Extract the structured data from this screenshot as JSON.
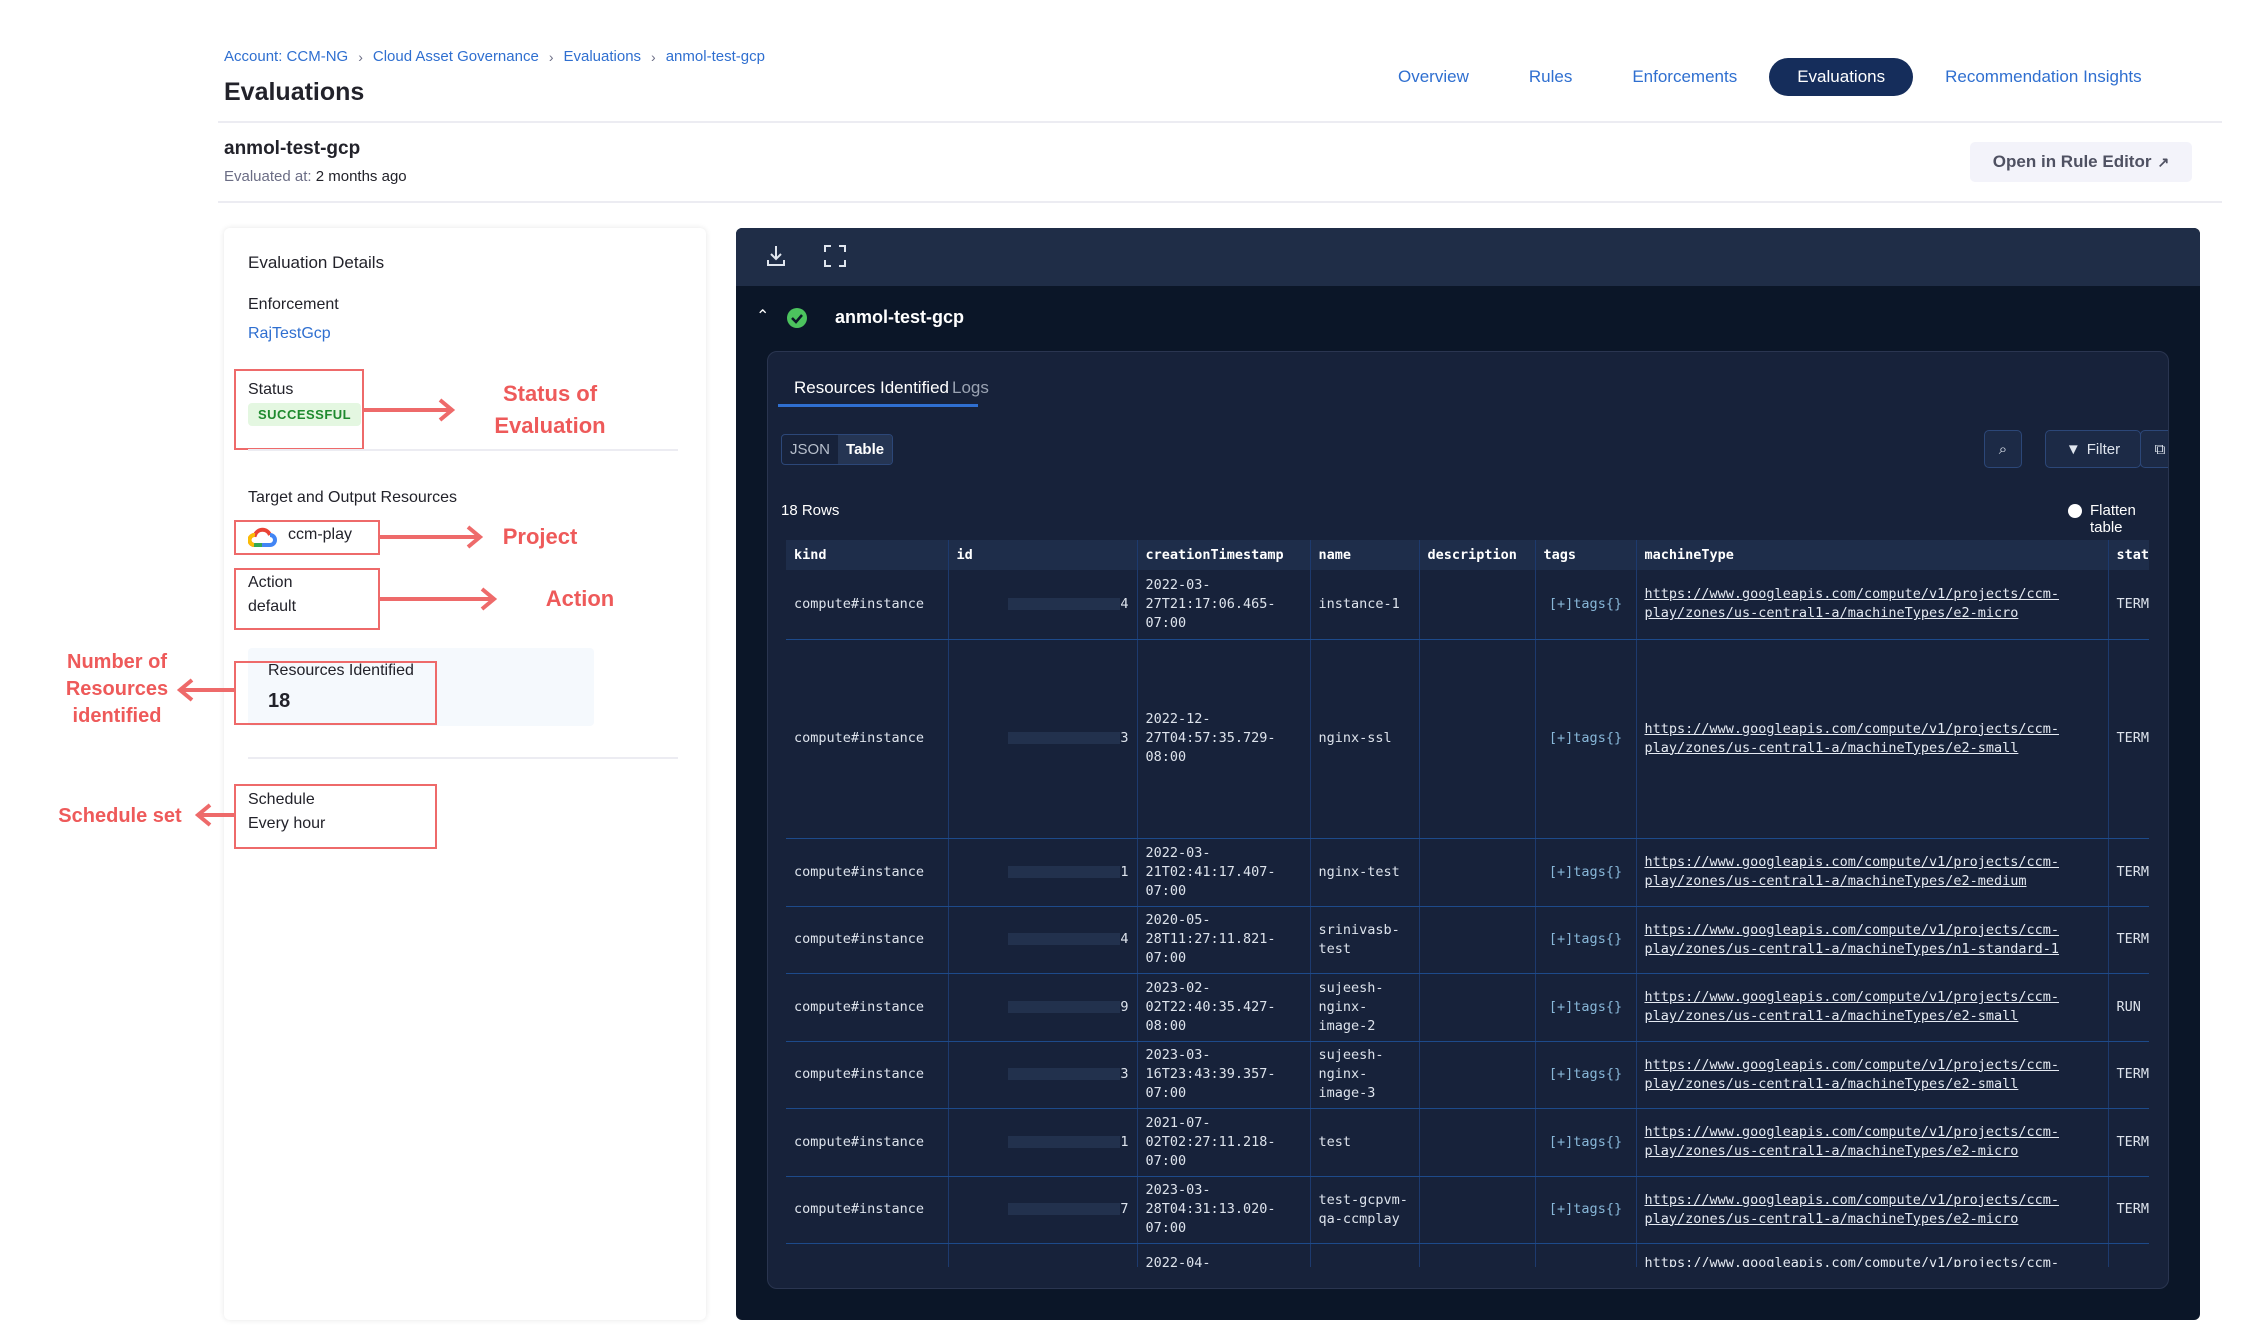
{
  "breadcrumb": [
    "Account: CCM-NG",
    "Cloud Asset Governance",
    "Evaluations",
    "anmol-test-gcp"
  ],
  "page_title": "Evaluations",
  "nav": {
    "items": [
      "Overview",
      "Rules",
      "Enforcements",
      "Evaluations",
      "Recommendation Insights"
    ],
    "active": "Evaluations"
  },
  "evaluation": {
    "name": "anmol-test-gcp",
    "evaluated_label": "Evaluated at:",
    "evaluated_value": "2 months ago",
    "open_editor": "Open in Rule Editor"
  },
  "details": {
    "heading": "Evaluation Details",
    "enforcement_label": "Enforcement",
    "enforcement_value": "RajTestGcp",
    "status_label": "Status",
    "status_value": "SUCCESSFUL",
    "target_label": "Target and Output Resources",
    "project": "ccm-play",
    "action_label": "Action",
    "action_value": "default",
    "resources_label": "Resources Identified",
    "resources_value": "18",
    "schedule_label": "Schedule",
    "schedule_value": "Every hour"
  },
  "annotations": {
    "status": "Status of Evaluation",
    "project": "Project",
    "action": "Action",
    "resources": "Number of Resources identified",
    "schedule": "Schedule set"
  },
  "panel": {
    "header": "anmol-test-gcp",
    "tabs": [
      "Resources Identified",
      "Logs"
    ],
    "view_modes": [
      "JSON",
      "Table"
    ],
    "view_active": "Table",
    "filter_label": "Filter",
    "rows_label": "18 Rows",
    "flatten_label": "Flatten table",
    "columns": [
      "kind",
      "id",
      "creationTimestamp",
      "name",
      "description",
      "tags",
      "machineType",
      "status"
    ],
    "rows": [
      {
        "kind": "compute#instance",
        "id": "4",
        "ts": "2022-03-27T21:17:06.465-07:00",
        "name": "instance-1",
        "description": "",
        "tags": "[+]tags{}",
        "machineType": "https://www.googleapis.com/compute/v1/projects/ccm-play/zones/us-central1-a/machineTypes/e2-micro",
        "status": "TERM"
      },
      {
        "kind": "compute#instance",
        "id": "3",
        "ts": "2022-12-27T04:57:35.729-08:00",
        "name": "nginx-ssl",
        "description": "",
        "tags": "[+]tags{}",
        "machineType": "https://www.googleapis.com/compute/v1/projects/ccm-play/zones/us-central1-a/machineTypes/e2-small",
        "status": "TERM"
      },
      {
        "kind": "compute#instance",
        "id": "1",
        "ts": "2022-03-21T02:41:17.407-07:00",
        "name": "nginx-test",
        "description": "",
        "tags": "[+]tags{}",
        "machineType": "https://www.googleapis.com/compute/v1/projects/ccm-play/zones/us-central1-a/machineTypes/e2-medium",
        "status": "TERM"
      },
      {
        "kind": "compute#instance",
        "id": "4",
        "ts": "2020-05-28T11:27:11.821-07:00",
        "name": "srinivasb-test",
        "description": "",
        "tags": "[+]tags{}",
        "machineType": "https://www.googleapis.com/compute/v1/projects/ccm-play/zones/us-central1-a/machineTypes/n1-standard-1",
        "status": "TERM"
      },
      {
        "kind": "compute#instance",
        "id": "9",
        "ts": "2023-02-02T22:40:35.427-08:00",
        "name": "sujeesh-nginx-image-2",
        "description": "",
        "tags": "[+]tags{}",
        "machineType": "https://www.googleapis.com/compute/v1/projects/ccm-play/zones/us-central1-a/machineTypes/e2-small",
        "status": "RUN"
      },
      {
        "kind": "compute#instance",
        "id": "3",
        "ts": "2023-03-16T23:43:39.357-07:00",
        "name": "sujeesh-nginx-image-3",
        "description": "",
        "tags": "[+]tags{}",
        "machineType": "https://www.googleapis.com/compute/v1/projects/ccm-play/zones/us-central1-a/machineTypes/e2-small",
        "status": "TERM"
      },
      {
        "kind": "compute#instance",
        "id": "1",
        "ts": "2021-07-02T02:27:11.218-07:00",
        "name": "test",
        "description": "",
        "tags": "[+]tags{}",
        "machineType": "https://www.googleapis.com/compute/v1/projects/ccm-play/zones/us-central1-a/machineTypes/e2-micro",
        "status": "TERM"
      },
      {
        "kind": "compute#instance",
        "id": "7",
        "ts": "2023-03-28T04:31:13.020-07:00",
        "name": "test-gcpvm-qa-ccmplay",
        "description": "",
        "tags": "[+]tags{}",
        "machineType": "https://www.googleapis.com/compute/v1/projects/ccm-play/zones/us-central1-a/machineTypes/e2-micro",
        "status": "TERM"
      },
      {
        "kind": "",
        "id": "",
        "ts": "2022-04-",
        "name": "",
        "description": "",
        "tags": "",
        "machineType": "https://www.googleapis.com/compute/v1/projects/ccm-",
        "status": ""
      }
    ]
  },
  "colors": {
    "accent": "#2f6fd0",
    "nav_active": "#152d5b",
    "annotation": "#ee5a5a",
    "success": "#1e8a2e",
    "panel_bg": "#0b1628"
  }
}
